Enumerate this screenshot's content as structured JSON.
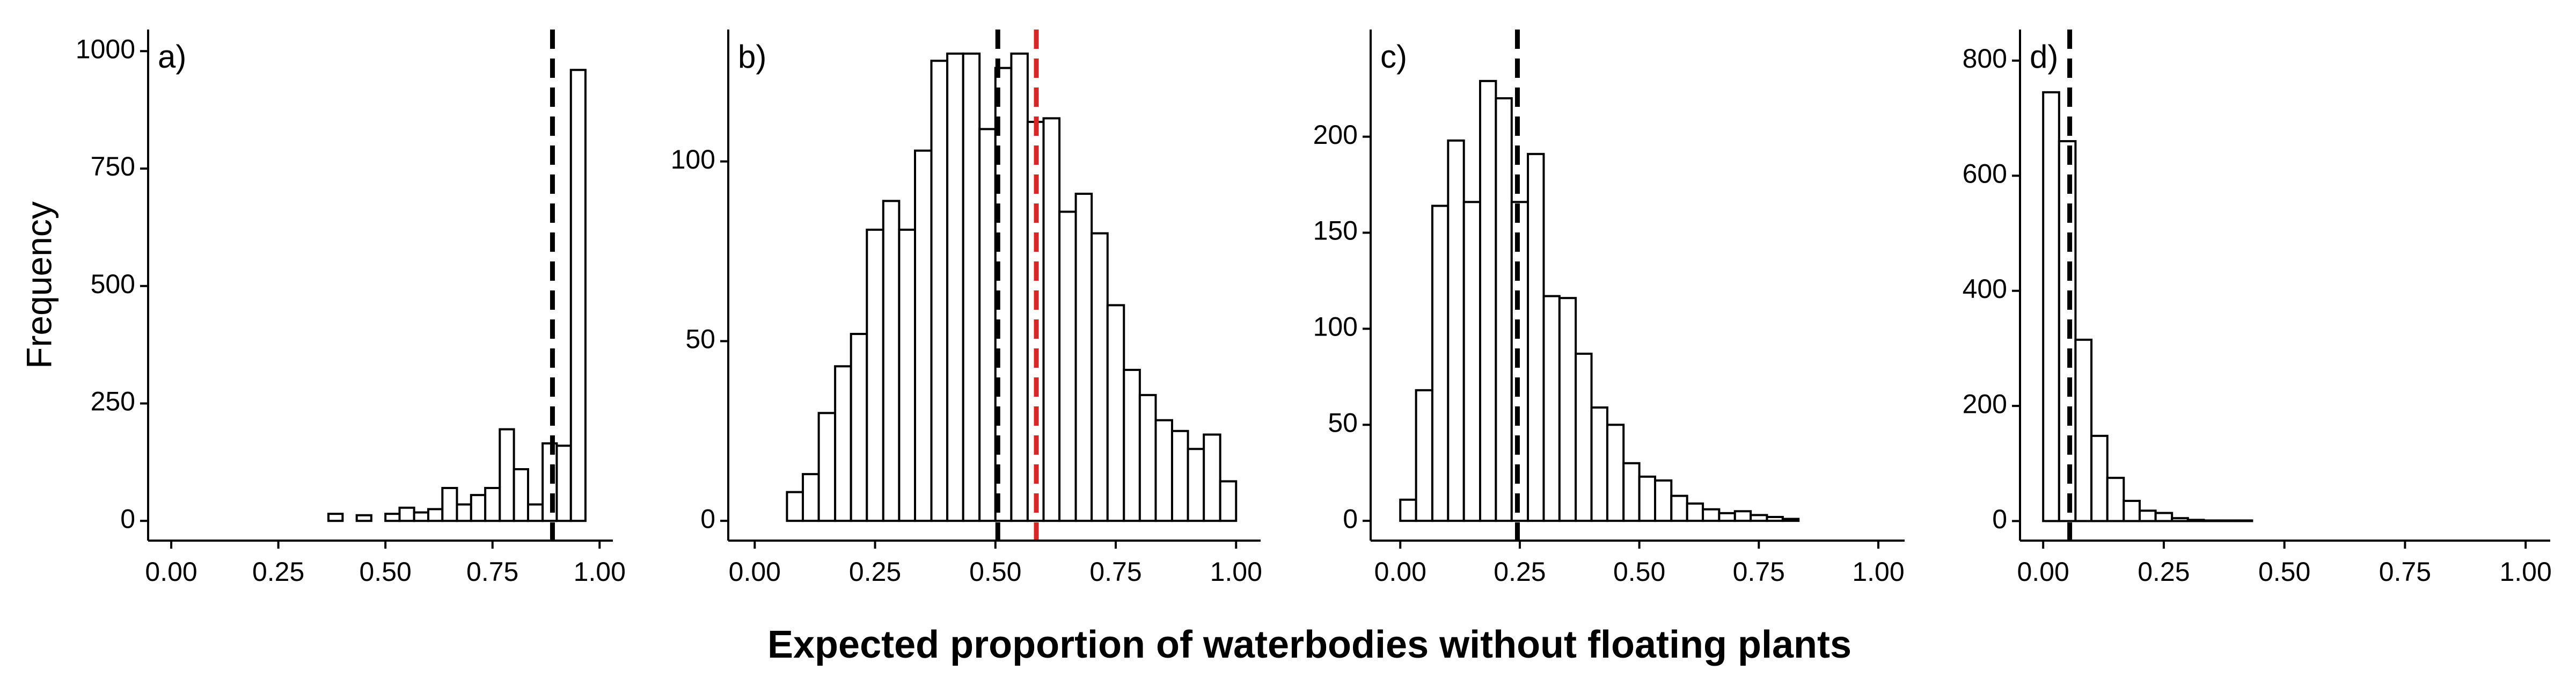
{
  "xlabel": "Expected proportion of waterbodies without floating plants",
  "chart_data": [
    {
      "type": "histogram",
      "annotation": "a)",
      "ylabel": "Frequency",
      "color": "#ffffff",
      "bins": [
        0,
        0.033,
        0.067,
        0.1,
        0.133,
        0.167,
        0.2,
        0.233,
        0.267,
        0.3,
        0.333,
        0.367,
        0.4,
        0.433,
        0.467,
        0.5,
        0.533,
        0.567,
        0.6,
        0.633,
        0.667,
        0.7,
        0.733,
        0.767,
        0.8,
        0.833,
        0.867,
        0.9,
        0.933,
        0.967,
        1
      ],
      "values": [
        0,
        0,
        0,
        0,
        0,
        0,
        0,
        0,
        0,
        0,
        0,
        15,
        0,
        12,
        0,
        15,
        28,
        18,
        25,
        70,
        35,
        55,
        70,
        195,
        110,
        35,
        165,
        160,
        960,
        0
      ],
      "vlines": [
        {
          "value": 0.89,
          "color": "#000000"
        }
      ],
      "xlim": [
        -0.054,
        1.031
      ],
      "ylim": [
        -42,
        1046
      ],
      "xticks": [
        {
          "value": 0,
          "label": "0.00"
        },
        {
          "value": 0.25,
          "label": "0.25"
        },
        {
          "value": 0.5,
          "label": "0.50"
        },
        {
          "value": 0.75,
          "label": "0.75"
        },
        {
          "value": 1,
          "label": "1.00"
        }
      ],
      "yticks": [
        0,
        250,
        500,
        750,
        1000
      ]
    },
    {
      "type": "histogram",
      "annotation": "b)",
      "color": "#ffffff",
      "bins": [
        0,
        0.033,
        0.067,
        0.1,
        0.133,
        0.167,
        0.2,
        0.233,
        0.267,
        0.3,
        0.333,
        0.367,
        0.4,
        0.433,
        0.467,
        0.5,
        0.533,
        0.567,
        0.6,
        0.633,
        0.667,
        0.7,
        0.733,
        0.767,
        0.8,
        0.833,
        0.867,
        0.9,
        0.933,
        0.967,
        1
      ],
      "values": [
        0,
        0,
        8,
        13,
        30,
        43,
        52,
        81,
        89,
        81,
        103,
        128,
        130,
        130,
        109,
        126,
        130,
        111,
        112,
        86,
        91,
        80,
        60,
        42,
        35,
        28,
        25,
        20,
        24,
        11
      ],
      "vlines": [
        {
          "value": 0.505,
          "color": "#000000"
        },
        {
          "value": 0.585,
          "color": "#d62728"
        }
      ],
      "xlim": [
        -0.055,
        1.051
      ],
      "ylim": [
        -5.5,
        136.7
      ],
      "xticks": [
        {
          "value": 0,
          "label": "0.00"
        },
        {
          "value": 0.25,
          "label": "0.25"
        },
        {
          "value": 0.5,
          "label": "0.50"
        },
        {
          "value": 0.75,
          "label": "0.75"
        },
        {
          "value": 1,
          "label": "1.00"
        }
      ],
      "yticks": [
        0,
        50,
        100
      ]
    },
    {
      "type": "histogram",
      "annotation": "c)",
      "color": "#ffffff",
      "bins": [
        0,
        0.033,
        0.067,
        0.1,
        0.133,
        0.167,
        0.2,
        0.233,
        0.267,
        0.3,
        0.333,
        0.367,
        0.4,
        0.433,
        0.467,
        0.5,
        0.533,
        0.567,
        0.6,
        0.633,
        0.667,
        0.7,
        0.733,
        0.767,
        0.8,
        0.833,
        0.867,
        0.9,
        0.933,
        0.967,
        1
      ],
      "values": [
        11,
        68,
        164,
        198,
        166,
        229,
        220,
        166,
        191,
        117,
        116,
        87,
        59,
        50,
        30,
        23,
        21,
        13,
        9,
        6,
        4,
        5,
        3,
        2,
        1,
        0,
        0,
        0,
        0,
        0
      ],
      "vlines": [
        {
          "value": 0.245,
          "color": "#000000"
        }
      ],
      "xlim": [
        -0.062,
        1.055
      ],
      "ylim": [
        -10.3,
        255.8
      ],
      "xticks": [
        {
          "value": 0,
          "label": "0.00"
        },
        {
          "value": 0.25,
          "label": "0.25"
        },
        {
          "value": 0.5,
          "label": "0.50"
        },
        {
          "value": 0.75,
          "label": "0.75"
        },
        {
          "value": 1,
          "label": "1.00"
        }
      ],
      "yticks": [
        0,
        50,
        100,
        150,
        200
      ]
    },
    {
      "type": "histogram",
      "annotation": "d)",
      "color": "#ffffff",
      "bins": [
        0,
        0.033,
        0.067,
        0.1,
        0.133,
        0.167,
        0.2,
        0.233,
        0.267,
        0.3,
        0.333,
        0.367,
        0.4,
        0.433,
        0.467,
        0.5,
        0.533,
        0.567,
        0.6,
        0.633,
        0.667,
        0.7,
        0.733,
        0.767,
        0.8,
        0.833,
        0.867,
        0.9,
        0.933,
        0.967,
        1
      ],
      "values": [
        745,
        660,
        315,
        148,
        75,
        35,
        18,
        14,
        5,
        2,
        1,
        1,
        1,
        0,
        0,
        0,
        0,
        0,
        0,
        0,
        0,
        0,
        0,
        0,
        0,
        0,
        0,
        0,
        0,
        0
      ],
      "vlines": [
        {
          "value": 0.055,
          "color": "#000000"
        }
      ],
      "xlim": [
        -0.048,
        1.051
      ],
      "ylim": [
        -34,
        854
      ],
      "xticks": [
        {
          "value": 0,
          "label": "0.00"
        },
        {
          "value": 0.25,
          "label": "0.25"
        },
        {
          "value": 0.5,
          "label": "0.50"
        },
        {
          "value": 0.75,
          "label": "0.75"
        },
        {
          "value": 1,
          "label": "1.00"
        }
      ],
      "yticks": [
        0,
        200,
        400,
        600,
        800
      ]
    }
  ]
}
